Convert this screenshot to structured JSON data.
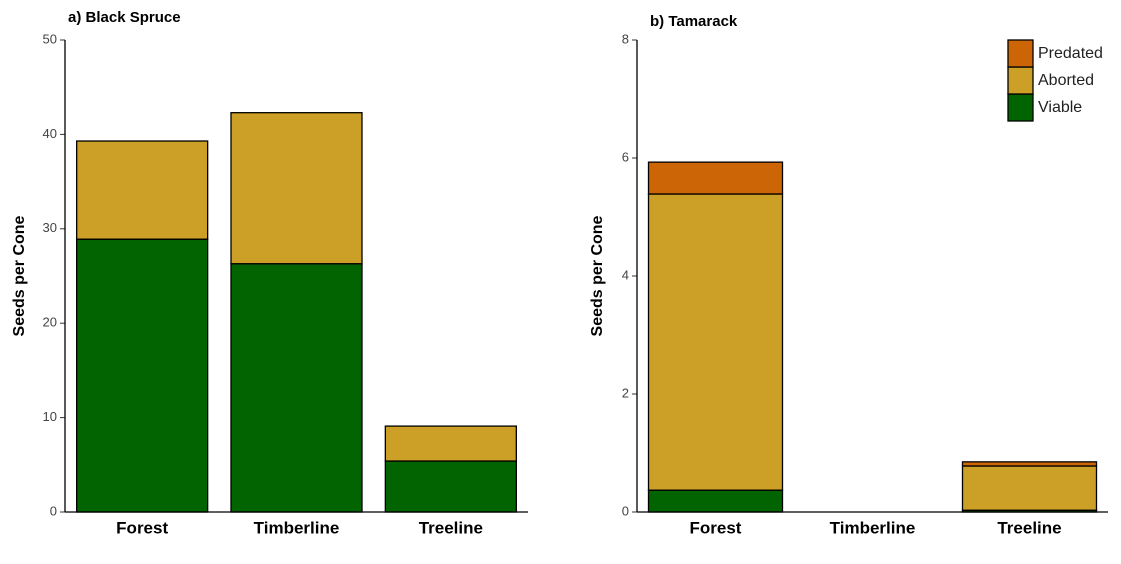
{
  "chart_data": [
    {
      "type": "stacked_bar",
      "title": "a) Black Spruce",
      "y_label": "Seeds per Cone",
      "categories": [
        "Forest",
        "Timberline",
        "Treeline"
      ],
      "series": [
        {
          "name": "Viable",
          "color": "#016401",
          "values": [
            28.9,
            26.3,
            5.4
          ]
        },
        {
          "name": "Aborted",
          "color": "#cc9f26",
          "values": [
            10.4,
            16.0,
            3.7
          ]
        }
      ],
      "ylim": [
        0,
        50
      ],
      "yticks": [
        0,
        10,
        20,
        30,
        40,
        50
      ],
      "legend": false
    },
    {
      "type": "stacked_bar",
      "title": "b) Tamarack",
      "y_label": "Seeds per Cone",
      "categories": [
        "Forest",
        "Timberline",
        "Treeline"
      ],
      "series": [
        {
          "name": "Viable",
          "color": "#016401",
          "values": [
            0.37,
            0,
            0.03
          ]
        },
        {
          "name": "Aborted",
          "color": "#cc9f26",
          "values": [
            5.02,
            0,
            0.75
          ]
        },
        {
          "name": "Predated",
          "color": "#cc6506",
          "values": [
            0.54,
            0,
            0.07
          ]
        }
      ],
      "ylim": [
        0,
        8
      ],
      "yticks": [
        0,
        2,
        4,
        6,
        8
      ],
      "legend": true
    }
  ]
}
